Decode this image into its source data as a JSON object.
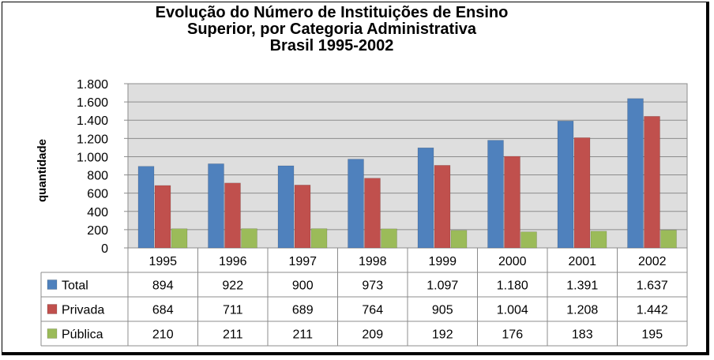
{
  "title_lines": [
    "Evolução do Número de Instituições de Ensino",
    "Superior, por Categoria Administrativa",
    "Brasil 1995-2002"
  ],
  "chart_data": {
    "type": "bar",
    "title": "Evolução do Número de Instituições de Ensino Superior, por Categoria Administrativa Brasil 1995-2002",
    "ylabel": "quantidade",
    "xlabel": "",
    "ylim": [
      0,
      1800
    ],
    "yticks": [
      0,
      200,
      400,
      600,
      800,
      1000,
      1200,
      1400,
      1600,
      1800
    ],
    "ytick_labels": [
      "0",
      "200",
      "400",
      "600",
      "800",
      "1.000",
      "1.200",
      "1.400",
      "1.600",
      "1.800"
    ],
    "grid": true,
    "legend": "data-table",
    "categories": [
      "1995",
      "1996",
      "1997",
      "1998",
      "1999",
      "2000",
      "2001",
      "2002"
    ],
    "series": [
      {
        "name": "Total",
        "color": "#4f81bd",
        "values": [
          894,
          922,
          900,
          973,
          1097,
          1180,
          1391,
          1637
        ],
        "labels": [
          "894",
          "922",
          "900",
          "973",
          "1.097",
          "1.180",
          "1.391",
          "1.637"
        ]
      },
      {
        "name": "Privada",
        "color": "#c0504d",
        "values": [
          684,
          711,
          689,
          764,
          905,
          1004,
          1208,
          1442
        ],
        "labels": [
          "684",
          "711",
          "689",
          "764",
          "905",
          "1.004",
          "1.208",
          "1.442"
        ]
      },
      {
        "name": "Pública",
        "color": "#9bbb59",
        "values": [
          210,
          211,
          211,
          209,
          192,
          176,
          183,
          195
        ],
        "labels": [
          "210",
          "211",
          "211",
          "209",
          "192",
          "176",
          "183",
          "195"
        ]
      }
    ]
  }
}
